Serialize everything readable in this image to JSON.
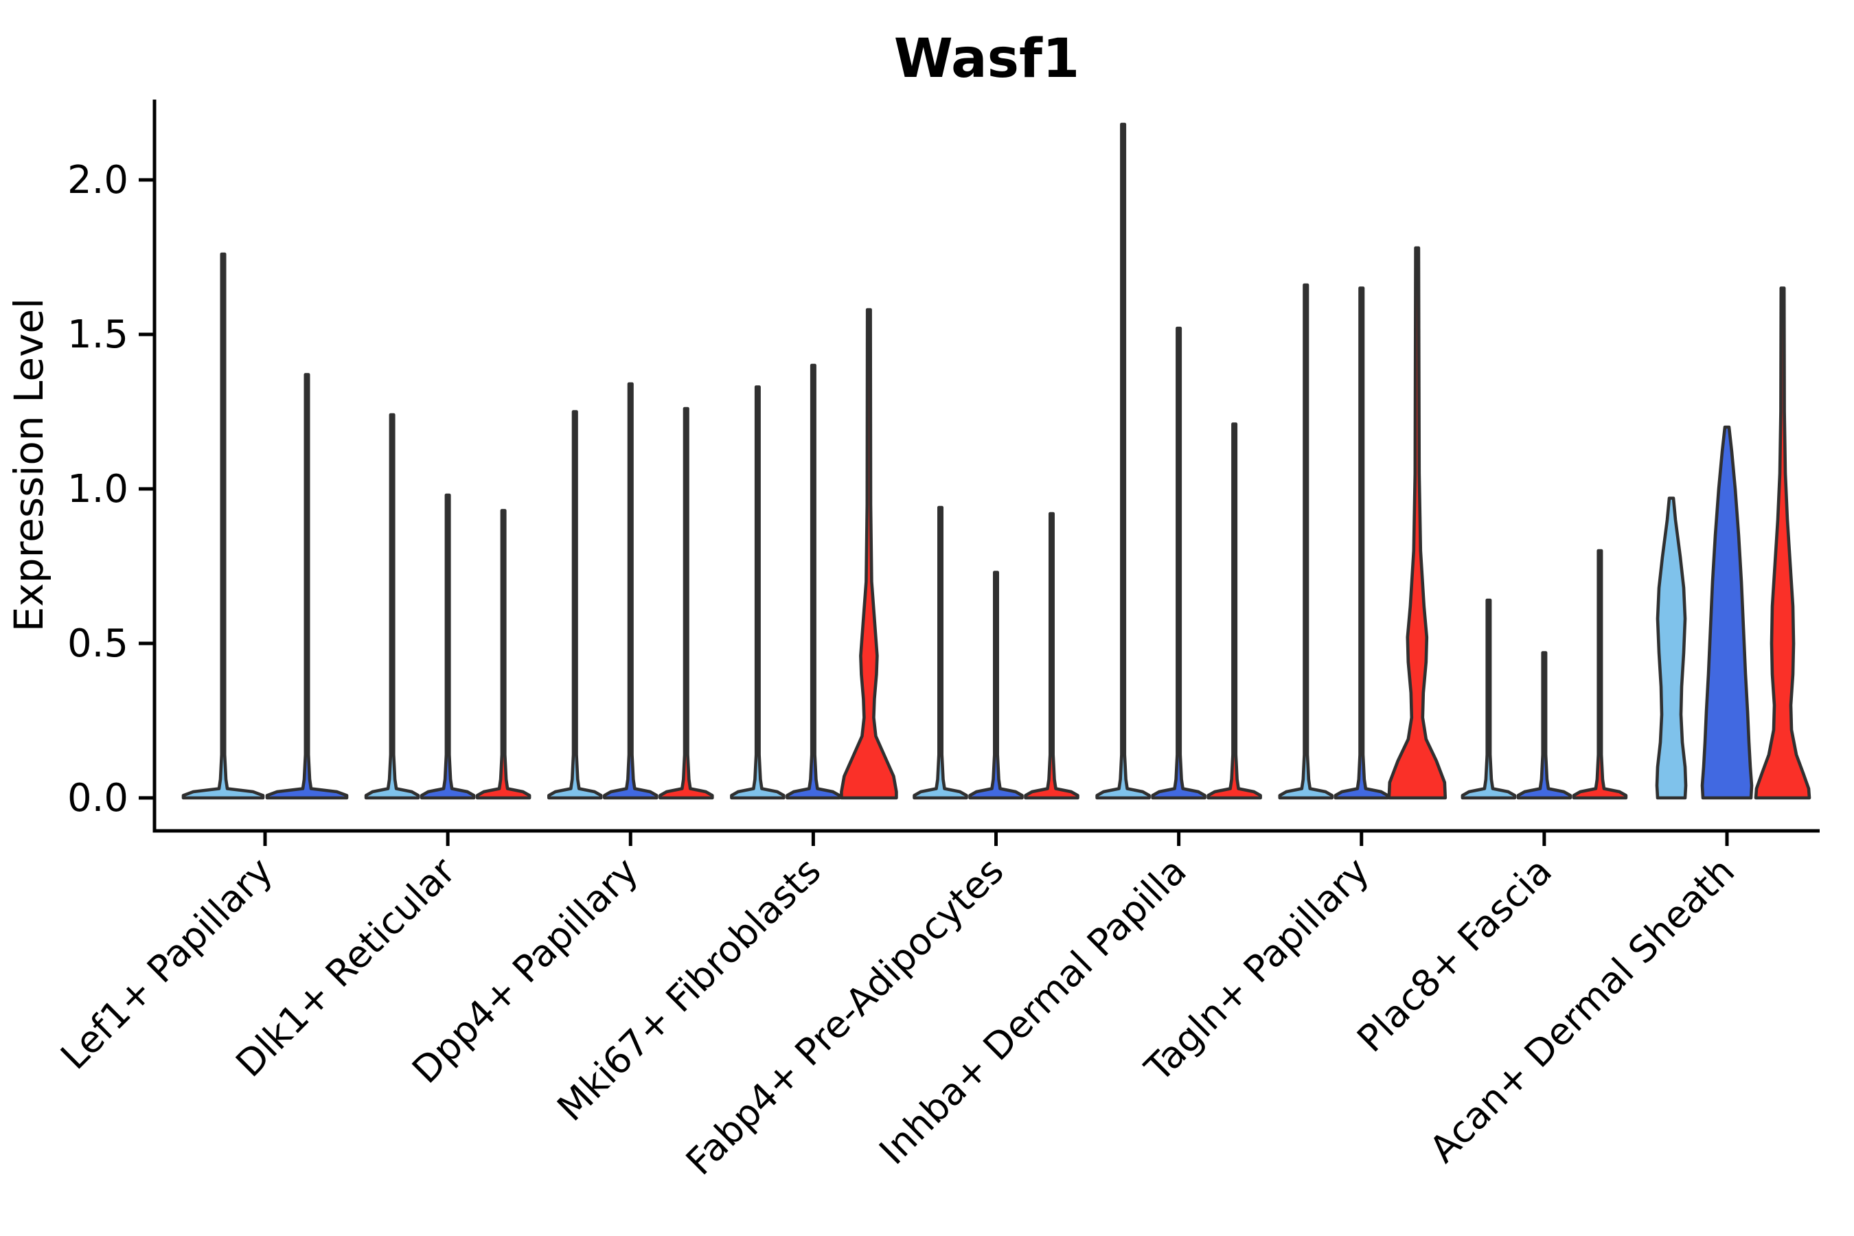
{
  "title": "Wasf1",
  "ylabel": "Expression Level",
  "colors": {
    "violin_outline": "#303030",
    "spike": "#333333",
    "skyblue": "#7FC2EB",
    "blue": "#4169E1",
    "red": "#FA3028",
    "axis": "#000000"
  },
  "chart_data": {
    "type": "violin",
    "title": "Wasf1",
    "xlabel": "",
    "ylabel": "Expression Level",
    "ylim": [
      0,
      2.3
    ],
    "yticks": [
      0.0,
      0.5,
      1.0,
      1.5,
      2.0
    ],
    "ytick_labels": [
      "0.0",
      "0.5",
      "1.0",
      "1.5",
      "2.0"
    ],
    "grid": false,
    "legend": "none",
    "categories": [
      "Lef1+ Papillary",
      "Dlk1+ Reticular",
      "Dpp4+ Papillary",
      "Mki67+ Fibroblasts",
      "Fabp4+ Pre-Adipocytes",
      "Inhba+ Dermal Papilla",
      "Tagln+ Papillary",
      "Plac8+ Fascia",
      "Acan+ Dermal Sheath"
    ],
    "description": "Violin plot of Wasf1 expression; most violins collapse to a thin spike (max expression) with a flat dense base at 0. A few violins have visible colored bodies.",
    "groups": [
      {
        "category": "Lef1+ Papillary",
        "violins": [
          {
            "shape": "spike",
            "max": 1.76,
            "fill": "#7FC2EB"
          },
          {
            "shape": "spike",
            "max": 1.37,
            "fill": "#4169E1"
          }
        ]
      },
      {
        "category": "Dlk1+ Reticular",
        "violins": [
          {
            "shape": "spike",
            "max": 1.24,
            "fill": "#7FC2EB"
          },
          {
            "shape": "spike",
            "max": 0.98,
            "fill": "#4169E1"
          },
          {
            "shape": "spike",
            "max": 0.93,
            "fill": "#FA3028"
          }
        ]
      },
      {
        "category": "Dpp4+ Papillary",
        "violins": [
          {
            "shape": "spike",
            "max": 1.25,
            "fill": "#7FC2EB"
          },
          {
            "shape": "spike",
            "max": 1.34,
            "fill": "#4169E1"
          },
          {
            "shape": "spike",
            "max": 1.26,
            "fill": "#FA3028"
          }
        ]
      },
      {
        "category": "Mki67+ Fibroblasts",
        "violins": [
          {
            "shape": "spike",
            "max": 1.33,
            "fill": "#7FC2EB"
          },
          {
            "shape": "spike",
            "max": 1.4,
            "fill": "#4169E1"
          },
          {
            "shape": "profile",
            "max": 1.58,
            "fill": "#FA3028",
            "profile": [
              [
                1.58,
                2.2
              ],
              [
                0.95,
                2.6
              ],
              [
                0.7,
                4
              ],
              [
                0.55,
                9
              ],
              [
                0.46,
                12
              ],
              [
                0.4,
                11
              ],
              [
                0.32,
                8
              ],
              [
                0.26,
                7
              ],
              [
                0.2,
                10
              ],
              [
                0.13,
                24
              ],
              [
                0.07,
                36
              ],
              [
                0.02,
                40
              ],
              [
                0,
                40
              ]
            ]
          }
        ]
      },
      {
        "category": "Fabp4+ Pre-Adipocytes",
        "violins": [
          {
            "shape": "spike",
            "max": 0.94,
            "fill": "#7FC2EB"
          },
          {
            "shape": "spike",
            "max": 0.73,
            "fill": "#4169E1"
          },
          {
            "shape": "spike",
            "max": 0.92,
            "fill": "#FA3028"
          }
        ]
      },
      {
        "category": "Inhba+ Dermal Papilla",
        "violins": [
          {
            "shape": "spike",
            "max": 2.18,
            "fill": "#7FC2EB"
          },
          {
            "shape": "spike",
            "max": 1.52,
            "fill": "#4169E1"
          },
          {
            "shape": "spike",
            "max": 1.21,
            "fill": "#FA3028"
          }
        ]
      },
      {
        "category": "Tagln+ Papillary",
        "violins": [
          {
            "shape": "spike",
            "max": 1.66,
            "fill": "#7FC2EB"
          },
          {
            "shape": "spike",
            "max": 1.65,
            "fill": "#4169E1"
          },
          {
            "shape": "profile",
            "max": 1.78,
            "fill": "#FA3028",
            "profile": [
              [
                1.78,
                2.2
              ],
              [
                1.05,
                3
              ],
              [
                0.8,
                5
              ],
              [
                0.62,
                10
              ],
              [
                0.52,
                14
              ],
              [
                0.44,
                13
              ],
              [
                0.34,
                9
              ],
              [
                0.26,
                8
              ],
              [
                0.19,
                13
              ],
              [
                0.12,
                28
              ],
              [
                0.05,
                40
              ],
              [
                0,
                41
              ]
            ]
          }
        ]
      },
      {
        "category": "Plac8+ Fascia",
        "violins": [
          {
            "shape": "spike",
            "max": 0.64,
            "fill": "#7FC2EB"
          },
          {
            "shape": "spike",
            "max": 0.47,
            "fill": "#4169E1"
          },
          {
            "shape": "spike",
            "max": 0.8,
            "fill": "#FA3028"
          }
        ]
      },
      {
        "category": "Acan+ Dermal Sheath",
        "violins": [
          {
            "shape": "profile",
            "max": 0.97,
            "fill": "#7FC2EB",
            "profile": [
              [
                0.97,
                3
              ],
              [
                0.9,
                6
              ],
              [
                0.78,
                13
              ],
              [
                0.68,
                18
              ],
              [
                0.58,
                20
              ],
              [
                0.47,
                18
              ],
              [
                0.36,
                15
              ],
              [
                0.27,
                14
              ],
              [
                0.18,
                16
              ],
              [
                0.1,
                20
              ],
              [
                0.04,
                21
              ],
              [
                0,
                20
              ]
            ]
          },
          {
            "shape": "profile",
            "max": 1.2,
            "fill": "#4169E1",
            "profile": [
              [
                1.2,
                3
              ],
              [
                1.12,
                7
              ],
              [
                1.0,
                12
              ],
              [
                0.85,
                17
              ],
              [
                0.7,
                21
              ],
              [
                0.55,
                24
              ],
              [
                0.4,
                27
              ],
              [
                0.28,
                30
              ],
              [
                0.18,
                32
              ],
              [
                0.1,
                34
              ],
              [
                0.04,
                36
              ],
              [
                0,
                35
              ]
            ]
          },
          {
            "shape": "profile",
            "max": 1.65,
            "fill": "#FA3028",
            "profile": [
              [
                1.65,
                2.2
              ],
              [
                1.25,
                2.6
              ],
              [
                1.05,
                4
              ],
              [
                0.9,
                7
              ],
              [
                0.76,
                11
              ],
              [
                0.62,
                15
              ],
              [
                0.5,
                16
              ],
              [
                0.4,
                15
              ],
              [
                0.3,
                12
              ],
              [
                0.22,
                13
              ],
              [
                0.14,
                20
              ],
              [
                0.08,
                30
              ],
              [
                0.03,
                38
              ],
              [
                0,
                39
              ]
            ]
          }
        ]
      }
    ]
  }
}
